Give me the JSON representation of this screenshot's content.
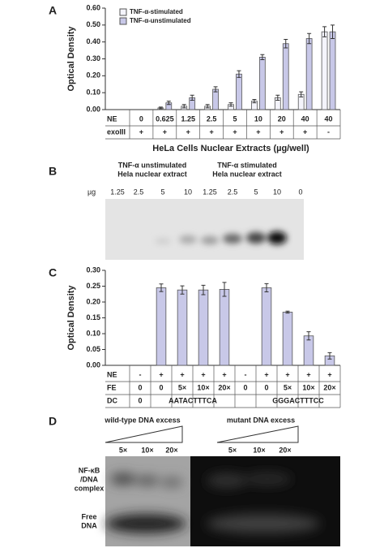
{
  "chart_data": [
    {
      "type": "bar",
      "panel": "A",
      "ylabel": "Optical Density",
      "xlabel": "HeLa Cells Nuclear Extracts (µg/well)",
      "categories": [
        "0",
        "0.625",
        "1.25",
        "2.5",
        "5",
        "10",
        "20",
        "40",
        "40"
      ],
      "rows": [
        {
          "label": "NE",
          "cells": [
            "0",
            "0.625",
            "1.25",
            "2.5",
            "5",
            "10",
            "20",
            "40",
            "40"
          ]
        },
        {
          "label": "exoIII",
          "cells": [
            "+",
            "+",
            "+",
            "+",
            "+",
            "+",
            "+",
            "+",
            "-"
          ]
        }
      ],
      "series": [
        {
          "name": "TNF-α-stimulated",
          "color": "#f4f4fb",
          "values": [
            0,
            0.01,
            0.02,
            0.02,
            0.03,
            0.05,
            0.07,
            0.09,
            0.46
          ],
          "errors": [
            0,
            0.005,
            0.01,
            0.01,
            0.01,
            0.01,
            0.015,
            0.015,
            0.03
          ]
        },
        {
          "name": "TNF-α-unstimulated",
          "color": "#c8c8e8",
          "values": [
            0,
            0.04,
            0.07,
            0.12,
            0.21,
            0.31,
            0.39,
            0.42,
            0.46
          ],
          "errors": [
            0,
            0.01,
            0.015,
            0.015,
            0.02,
            0.015,
            0.025,
            0.03,
            0.04
          ]
        }
      ],
      "ylim": [
        0,
        0.6
      ],
      "yticks": [
        {
          "value": 0,
          "label": "0.00"
        },
        {
          "value": 0.1,
          "label": "0.10"
        },
        {
          "value": 0.2,
          "label": "0.20"
        },
        {
          "value": 0.3,
          "label": "0.30"
        },
        {
          "value": 0.4,
          "label": "0.40"
        },
        {
          "value": 0.5,
          "label": "0.50"
        },
        {
          "value": 0.6,
          "label": "0.60"
        }
      ],
      "legend": "top-left"
    },
    {
      "type": "bar",
      "panel": "C",
      "ylabel": "Optical Density",
      "categories": [
        null,
        null,
        null,
        null,
        null,
        null,
        null,
        null,
        null,
        null
      ],
      "rows": [
        {
          "label": "NE",
          "cells": [
            "-",
            "+",
            "+",
            "+",
            "+",
            "-",
            "+",
            "+",
            "+",
            "+"
          ]
        },
        {
          "label": "FE",
          "cells": [
            "0",
            "0",
            "5×",
            "10×",
            "20×",
            "0",
            "0",
            "5×",
            "10×",
            "20×"
          ]
        },
        {
          "label": "DC",
          "cells": [
            "0",
            "AATACTTTCA",
            "GGGACTTTCC"
          ]
        }
      ],
      "series": [
        {
          "color": "#c8c8e8",
          "values": [
            0,
            0.245,
            0.238,
            0.238,
            0.24,
            0,
            0.245,
            0.168,
            0.093,
            0.03
          ],
          "errors": [
            0,
            0.012,
            0.013,
            0.015,
            0.022,
            0,
            0.013,
            0.003,
            0.013,
            0.01
          ]
        }
      ],
      "ylim": [
        0,
        0.3
      ],
      "yticks": [
        {
          "value": 0,
          "label": "0.00"
        },
        {
          "value": 0.05,
          "label": "0.05"
        },
        {
          "value": 0.1,
          "label": "0.10"
        },
        {
          "value": 0.15,
          "label": "0.15"
        },
        {
          "value": 0.2,
          "label": "0.20"
        },
        {
          "value": 0.25,
          "label": "0.25"
        },
        {
          "value": 0.3,
          "label": "0.30"
        }
      ]
    }
  ],
  "gel_b": {
    "panel": "B",
    "unit": "µg",
    "groups": [
      {
        "lines": [
          "TNF-α unstimulated",
          "Hela nuclear extract"
        ]
      },
      {
        "lines": [
          "TNF-α stimulated",
          "Hela nuclear extract"
        ]
      }
    ],
    "lanes": [
      "1.25",
      "2.5",
      "5",
      "10",
      "1.25",
      "2.5",
      "5",
      "10",
      "0"
    ]
  },
  "gel_d": {
    "panel": "D",
    "groups": [
      {
        "title": "wild-type DNA excess",
        "lanes": [
          "5×",
          "10×",
          "20×"
        ]
      },
      {
        "title": "mutant DNA excess",
        "lanes": [
          "5×",
          "10×",
          "20×"
        ]
      }
    ],
    "labels": [
      [
        "NF-κB",
        "/DNA",
        "complex"
      ],
      [
        "Free",
        "DNA"
      ]
    ]
  }
}
